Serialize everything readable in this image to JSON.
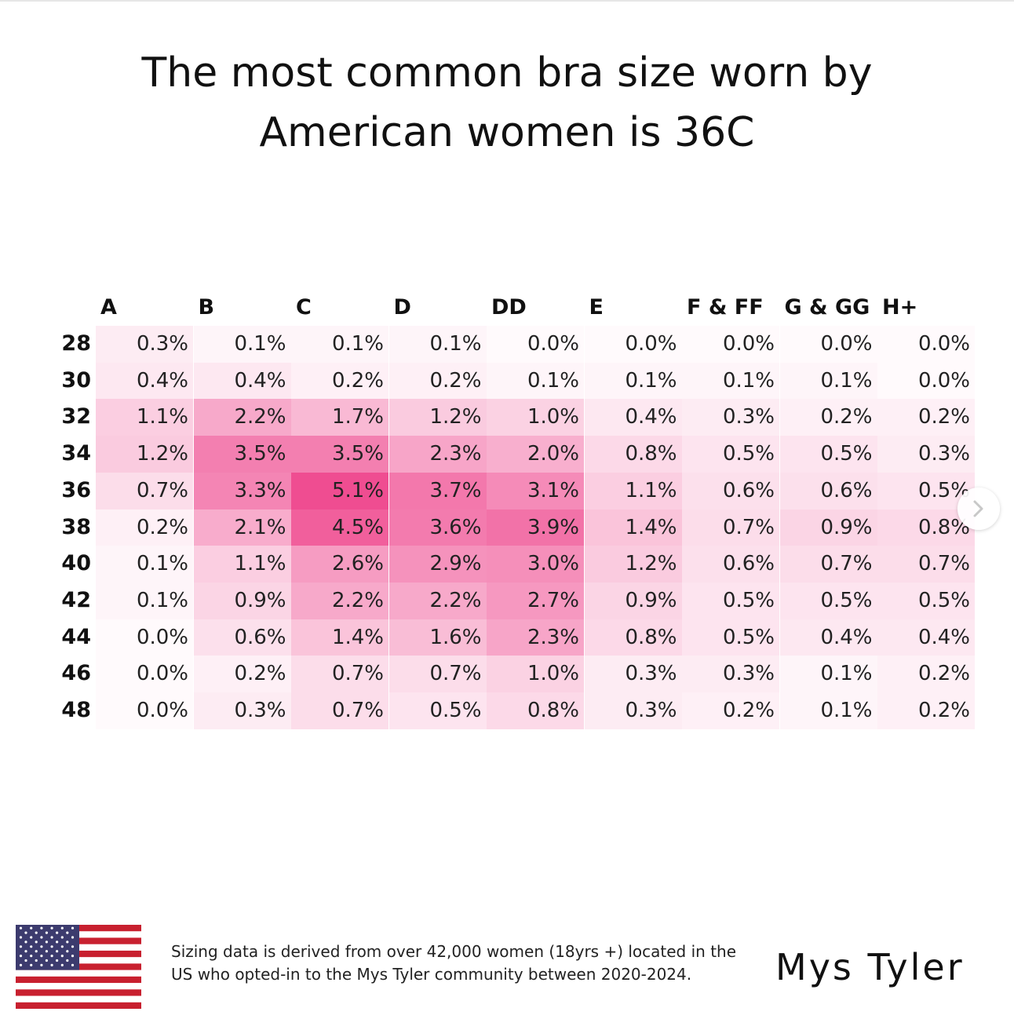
{
  "title": {
    "line1": "The most common bra size worn by",
    "line2": "American women is 36C"
  },
  "chart_data": {
    "type": "heatmap",
    "title": "The most common bra size worn by American women is 36C",
    "columns": [
      "A",
      "B",
      "C",
      "D",
      "DD",
      "E",
      "F & FF",
      "G & GG",
      "H+"
    ],
    "rows": [
      "28",
      "30",
      "32",
      "34",
      "36",
      "38",
      "40",
      "42",
      "44",
      "46",
      "48"
    ],
    "values": [
      [
        0.3,
        0.1,
        0.1,
        0.1,
        0.0,
        0.0,
        0.0,
        0.0,
        0.0
      ],
      [
        0.4,
        0.4,
        0.2,
        0.2,
        0.1,
        0.1,
        0.1,
        0.1,
        0.0
      ],
      [
        1.1,
        2.2,
        1.7,
        1.2,
        1.0,
        0.4,
        0.3,
        0.2,
        0.2
      ],
      [
        1.2,
        3.5,
        3.5,
        2.3,
        2.0,
        0.8,
        0.5,
        0.5,
        0.3
      ],
      [
        0.7,
        3.3,
        5.1,
        3.7,
        3.1,
        1.1,
        0.6,
        0.6,
        0.5
      ],
      [
        0.2,
        2.1,
        4.5,
        3.6,
        3.9,
        1.4,
        0.7,
        0.9,
        0.8
      ],
      [
        0.1,
        1.1,
        2.6,
        2.9,
        3.0,
        1.2,
        0.6,
        0.7,
        0.7
      ],
      [
        0.1,
        0.9,
        2.2,
        2.2,
        2.7,
        0.9,
        0.5,
        0.5,
        0.5
      ],
      [
        0.0,
        0.6,
        1.4,
        1.6,
        2.3,
        0.8,
        0.5,
        0.4,
        0.4
      ],
      [
        0.0,
        0.2,
        0.7,
        0.7,
        1.0,
        0.3,
        0.3,
        0.1,
        0.2
      ],
      [
        0.0,
        0.3,
        0.7,
        0.5,
        0.8,
        0.3,
        0.2,
        0.1,
        0.2
      ]
    ],
    "value_suffix": "%",
    "color_low": "#ffffff",
    "color_high": "#ef4d91"
  },
  "footnote": {
    "line1": "Sizing data is derived from over 42,000 women (18yrs +)  located in the",
    "line2": "US who opted-in to the Mys Tyler community between 2020-2024."
  },
  "brand": "Mys Tyler",
  "icons": {
    "flag": "us-flag-icon",
    "next": "chevron-right-icon"
  },
  "colors": {
    "flag_red": "#c8202f",
    "flag_blue": "#3c3b6e",
    "flag_white": "#ffffff"
  }
}
